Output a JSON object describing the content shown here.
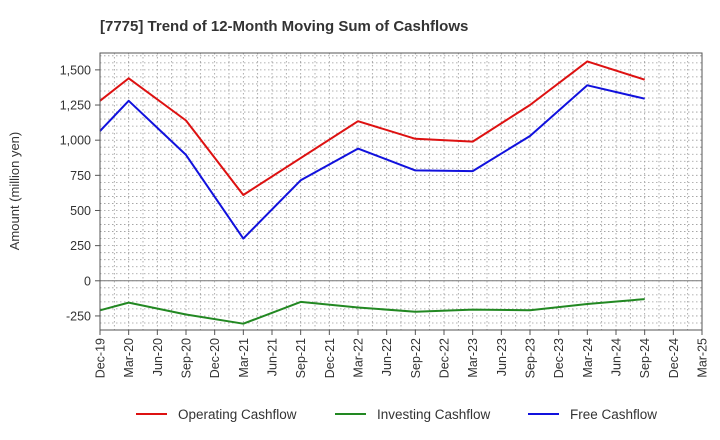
{
  "chart_data": {
    "type": "line",
    "title": "[7775]  Trend of 12-Month Moving Sum of Cashflows",
    "ylabel": "Amount (million yen)",
    "xlabel": "",
    "ylim": [
      -350,
      1620
    ],
    "yticks": [
      1500,
      1250,
      1000,
      750,
      500,
      250,
      0,
      -250
    ],
    "ytick_labels": [
      "1,500",
      "1,250",
      "1,000",
      "750",
      "500",
      "250",
      "0",
      "-250"
    ],
    "categories": [
      "Dec-19",
      "Mar-20",
      "Jun-20",
      "Sep-20",
      "Dec-20",
      "Mar-21",
      "Jun-21",
      "Sep-21",
      "Dec-21",
      "Mar-22",
      "Jun-22",
      "Sep-22",
      "Dec-22",
      "Mar-23",
      "Jun-23",
      "Sep-23",
      "Dec-23",
      "Mar-24",
      "Jun-24",
      "Sep-24",
      "Dec-24",
      "Mar-25"
    ],
    "grid": true,
    "legend_position": "bottom",
    "series": [
      {
        "name": "Operating Cashflow",
        "color": "#dd1111",
        "values": [
          1280,
          1440,
          null,
          1140,
          null,
          610,
          null,
          null,
          null,
          1135,
          null,
          1010,
          null,
          990,
          null,
          1250,
          null,
          1560,
          null,
          1430,
          null,
          null
        ]
      },
      {
        "name": "Investing Cashflow",
        "color": "#228822",
        "values": [
          -210,
          -155,
          null,
          -240,
          null,
          -305,
          null,
          -150,
          null,
          -190,
          null,
          -220,
          null,
          -205,
          null,
          -210,
          null,
          -165,
          null,
          -130,
          null,
          null
        ]
      },
      {
        "name": "Free Cashflow",
        "color": "#1111dd",
        "values": [
          1065,
          1280,
          null,
          895,
          null,
          300,
          null,
          715,
          null,
          940,
          null,
          785,
          null,
          780,
          null,
          1030,
          null,
          1390,
          null,
          1295,
          null,
          null
        ]
      }
    ]
  }
}
